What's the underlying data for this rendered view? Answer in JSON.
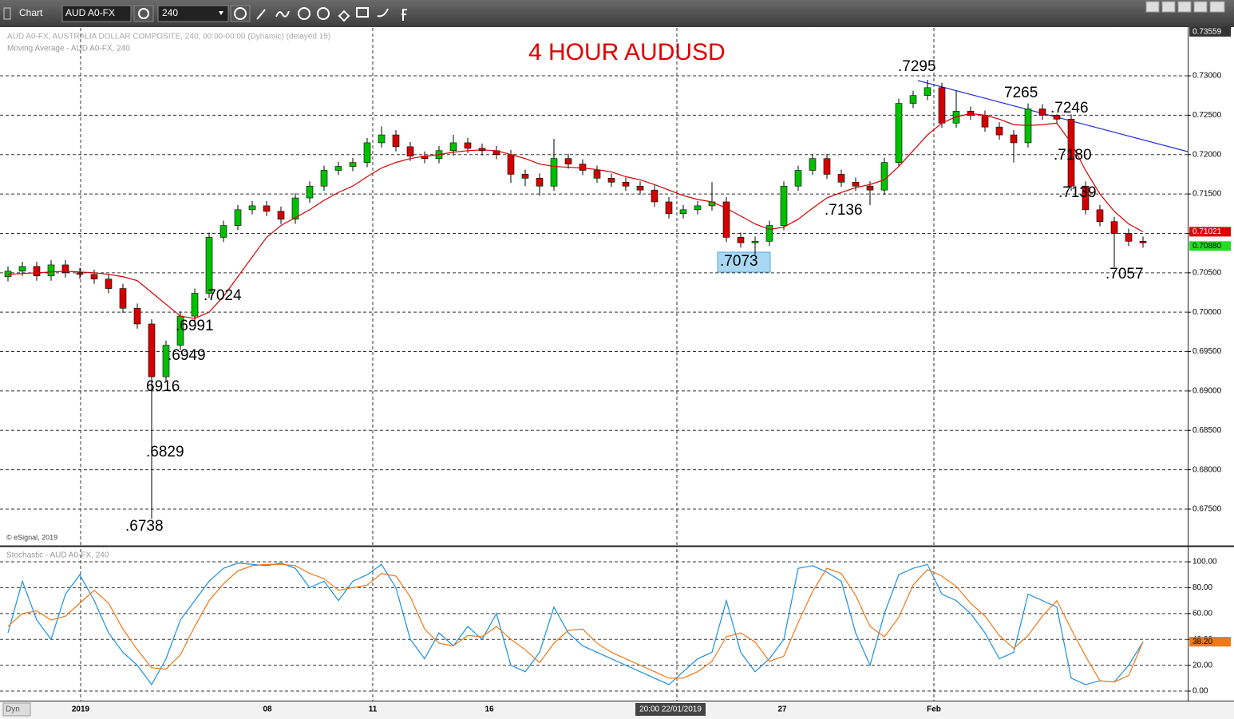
{
  "toolbar": {
    "app": "Chart",
    "symbol": "AUD A0-FX",
    "interval": "240",
    "mode": "Dyn"
  },
  "time_axis": {
    "labels": [
      "2019",
      "08",
      "11",
      "16",
      "27",
      "Feb"
    ],
    "cursor_time": "20:00 22/01/2019"
  },
  "chart_data": [
    {
      "type": "candlestick",
      "title": "4 HOUR AUDUSD",
      "subtitle": "AUD A0-FX, AUSTRALIA DOLLAR COMPOSITE, 240, 00:00-00:00 (Dynamic) (delayed 15)",
      "credit": "© eSignal, 2019",
      "open": [
        0.7045,
        0.7052,
        0.7058,
        0.7046,
        0.706,
        0.705,
        0.7048,
        0.7042,
        0.703,
        0.7005,
        0.6985,
        0.6918,
        0.6958,
        0.6995,
        0.7024,
        0.7095,
        0.711,
        0.713,
        0.7135,
        0.7128,
        0.7118,
        0.7145,
        0.716,
        0.718,
        0.7185,
        0.719,
        0.7215,
        0.7225,
        0.721,
        0.7198,
        0.7195,
        0.7205,
        0.7215,
        0.7208,
        0.7205,
        0.72,
        0.7175,
        0.717,
        0.716,
        0.7195,
        0.7188,
        0.718,
        0.717,
        0.7165,
        0.716,
        0.7155,
        0.714,
        0.7125,
        0.713,
        0.7135,
        0.714,
        0.7095,
        0.7088,
        0.709,
        0.711,
        0.716,
        0.718,
        0.7195,
        0.7175,
        0.7165,
        0.716,
        0.7155,
        0.719,
        0.7265,
        0.7275,
        0.7285,
        0.724,
        0.7255,
        0.725,
        0.7235,
        0.7225,
        0.7215,
        0.7258,
        0.725,
        0.7245,
        0.716,
        0.713,
        0.7115,
        0.71,
        0.709
      ],
      "high": [
        0.7058,
        0.7064,
        0.7064,
        0.7066,
        0.7066,
        0.7056,
        0.7054,
        0.7048,
        0.7036,
        0.7011,
        0.6991,
        0.6964,
        0.7001,
        0.703,
        0.7101,
        0.7116,
        0.7136,
        0.7141,
        0.7141,
        0.7134,
        0.7151,
        0.7166,
        0.7186,
        0.7191,
        0.7196,
        0.7221,
        0.7236,
        0.7231,
        0.7216,
        0.7204,
        0.7211,
        0.7225,
        0.7221,
        0.7214,
        0.7211,
        0.7206,
        0.7181,
        0.7176,
        0.722,
        0.7201,
        0.7194,
        0.7186,
        0.7176,
        0.7171,
        0.7166,
        0.7161,
        0.7146,
        0.7136,
        0.7141,
        0.7165,
        0.7146,
        0.7101,
        0.7096,
        0.7116,
        0.7166,
        0.7186,
        0.7201,
        0.7201,
        0.7181,
        0.7171,
        0.7166,
        0.7196,
        0.7271,
        0.7281,
        0.7295,
        0.7291,
        0.7281,
        0.7261,
        0.7256,
        0.7241,
        0.7231,
        0.7265,
        0.7264,
        0.7251,
        0.7251,
        0.7166,
        0.7136,
        0.7121,
        0.7106,
        0.7096
      ],
      "low": [
        0.7039,
        0.7046,
        0.704,
        0.704,
        0.7044,
        0.7042,
        0.7036,
        0.7024,
        0.6999,
        0.6979,
        0.6738,
        0.6912,
        0.6952,
        0.6989,
        0.7018,
        0.7089,
        0.7104,
        0.7124,
        0.7122,
        0.7112,
        0.7112,
        0.7139,
        0.7154,
        0.7174,
        0.7179,
        0.7184,
        0.7209,
        0.7204,
        0.7192,
        0.7189,
        0.7189,
        0.7199,
        0.7202,
        0.7199,
        0.7194,
        0.7164,
        0.716,
        0.7148,
        0.7154,
        0.7182,
        0.7174,
        0.7164,
        0.7159,
        0.7154,
        0.7149,
        0.7134,
        0.7119,
        0.7119,
        0.7124,
        0.7129,
        0.7089,
        0.7082,
        0.7073,
        0.7084,
        0.7104,
        0.7154,
        0.7174,
        0.7169,
        0.7159,
        0.7154,
        0.7136,
        0.7149,
        0.7184,
        0.7259,
        0.7269,
        0.7234,
        0.7234,
        0.7244,
        0.7229,
        0.7219,
        0.719,
        0.7209,
        0.7244,
        0.7239,
        0.7154,
        0.7124,
        0.7109,
        0.7057,
        0.7084,
        0.7082
      ],
      "close": [
        0.7052,
        0.7058,
        0.7046,
        0.706,
        0.705,
        0.7048,
        0.7042,
        0.703,
        0.7005,
        0.6985,
        0.6918,
        0.6958,
        0.6995,
        0.7024,
        0.7095,
        0.711,
        0.713,
        0.7135,
        0.7128,
        0.7118,
        0.7145,
        0.716,
        0.718,
        0.7185,
        0.719,
        0.7215,
        0.7225,
        0.721,
        0.7198,
        0.7195,
        0.7205,
        0.7215,
        0.7208,
        0.7205,
        0.72,
        0.7175,
        0.717,
        0.716,
        0.7195,
        0.7188,
        0.718,
        0.717,
        0.7165,
        0.716,
        0.7155,
        0.714,
        0.7125,
        0.713,
        0.7135,
        0.714,
        0.7095,
        0.7088,
        0.709,
        0.711,
        0.716,
        0.718,
        0.7195,
        0.7175,
        0.7165,
        0.716,
        0.7155,
        0.719,
        0.7265,
        0.7275,
        0.7285,
        0.724,
        0.7255,
        0.725,
        0.7235,
        0.7225,
        0.7215,
        0.7258,
        0.725,
        0.7245,
        0.716,
        0.713,
        0.7115,
        0.71,
        0.709,
        0.7088
      ],
      "close_label": "0.70880",
      "up_color": "#00c000",
      "down_color": "#d40000",
      "series": [
        {
          "name": "Moving Average - AUD A0-FX, 240",
          "color": "#d40000",
          "last_label": "0.71021",
          "values": [
            0.7048,
            0.7049,
            0.705,
            0.7051,
            0.7052,
            0.7051,
            0.705,
            0.7048,
            0.7045,
            0.704,
            0.7025,
            0.701,
            0.6995,
            0.6992,
            0.7,
            0.702,
            0.7045,
            0.707,
            0.7095,
            0.711,
            0.712,
            0.713,
            0.7142,
            0.7152,
            0.716,
            0.7172,
            0.7183,
            0.719,
            0.7195,
            0.7198,
            0.72,
            0.7203,
            0.7205,
            0.7206,
            0.7205,
            0.72,
            0.7195,
            0.7188,
            0.7185,
            0.7184,
            0.7183,
            0.7181,
            0.7178,
            0.7172,
            0.7168,
            0.7162,
            0.7155,
            0.7148,
            0.7143,
            0.714,
            0.7132,
            0.7122,
            0.7112,
            0.7105,
            0.7108,
            0.7118,
            0.7132,
            0.7145,
            0.7152,
            0.7158,
            0.7162,
            0.7168,
            0.7185,
            0.7205,
            0.7225,
            0.724,
            0.7248,
            0.7252,
            0.725,
            0.7245,
            0.7238,
            0.7237,
            0.7238,
            0.724,
            0.7215,
            0.718,
            0.715,
            0.7128,
            0.7112,
            0.71021
          ]
        }
      ],
      "annotations": [
        ".7295",
        "7265",
        ".7246",
        ".7180",
        ".7139",
        ".7136",
        ".7073",
        ".7057",
        ".7024",
        ".6991",
        ".6949",
        "6916",
        ".6829",
        ".6738"
      ],
      "cursor_price": {
        "value": 0.73559,
        "label": "0.73559"
      },
      "ylim": [
        0.67044,
        0.73608
      ],
      "yticks": [
        {
          "value": 0.675,
          "label": "0.67500"
        },
        {
          "value": 0.68,
          "label": "0.68000"
        },
        {
          "value": 0.685,
          "label": "0.68500"
        },
        {
          "value": 0.69,
          "label": "0.69000"
        },
        {
          "value": 0.695,
          "label": "0.69500"
        },
        {
          "value": 0.7,
          "label": "0.70000"
        },
        {
          "value": 0.705,
          "label": "0.70500"
        },
        {
          "value": 0.71,
          "label": "0.71000"
        },
        {
          "value": 0.715,
          "label": "0.71500"
        },
        {
          "value": 0.72,
          "label": "0.72000"
        },
        {
          "value": 0.725,
          "label": "0.72500"
        },
        {
          "value": 0.73,
          "label": "0.73000"
        }
      ],
      "grid": true
    },
    {
      "type": "line",
      "title": "Stochastic - AUD A0-FX, 240",
      "series": [
        {
          "color": "#1e8fe0",
          "values": [
            45,
            85,
            55,
            40,
            75,
            90,
            70,
            45,
            30,
            20,
            5,
            25,
            55,
            70,
            85,
            95,
            99,
            98,
            97,
            99,
            95,
            80,
            85,
            70,
            85,
            90,
            98,
            80,
            40,
            25,
            45,
            35,
            50,
            40,
            60,
            20,
            15,
            30,
            65,
            45,
            35,
            30,
            25,
            20,
            15,
            10,
            5,
            15,
            25,
            30,
            70,
            30,
            15,
            25,
            40,
            95,
            97,
            92,
            85,
            45,
            20,
            60,
            90,
            95,
            98,
            75,
            70,
            60,
            45,
            25,
            30,
            75,
            70,
            65,
            10,
            5,
            8,
            7,
            20,
            38
          ]
        },
        {
          "color": "#f07818",
          "last_label": "38.20",
          "values": [
            50,
            60,
            62,
            55,
            58,
            68,
            78,
            68,
            48,
            32,
            18,
            17,
            28,
            50,
            70,
            83,
            93,
            97,
            98,
            98,
            97,
            91,
            87,
            78,
            80,
            82,
            91,
            89,
            73,
            48,
            37,
            35,
            43,
            42,
            50,
            40,
            32,
            22,
            37,
            47,
            48,
            37,
            30,
            25,
            20,
            15,
            10,
            10,
            15,
            23,
            42,
            45,
            38,
            23,
            27,
            53,
            77,
            95,
            91,
            74,
            50,
            42,
            57,
            82,
            94,
            89,
            81,
            68,
            58,
            43,
            33,
            43,
            58,
            70,
            48,
            27,
            8,
            7,
            12,
            38.2
          ]
        }
      ],
      "ylim": [
        -7.4,
        109.9
      ],
      "yticks": [
        {
          "value": 0,
          "label": "0.00"
        },
        {
          "value": 20,
          "label": "20.00"
        },
        {
          "value": 40,
          "label": "40.00"
        },
        {
          "value": 60,
          "label": "60.00"
        },
        {
          "value": 80,
          "label": "80.00"
        },
        {
          "value": 100,
          "label": "100.00"
        }
      ],
      "grid": true
    }
  ]
}
